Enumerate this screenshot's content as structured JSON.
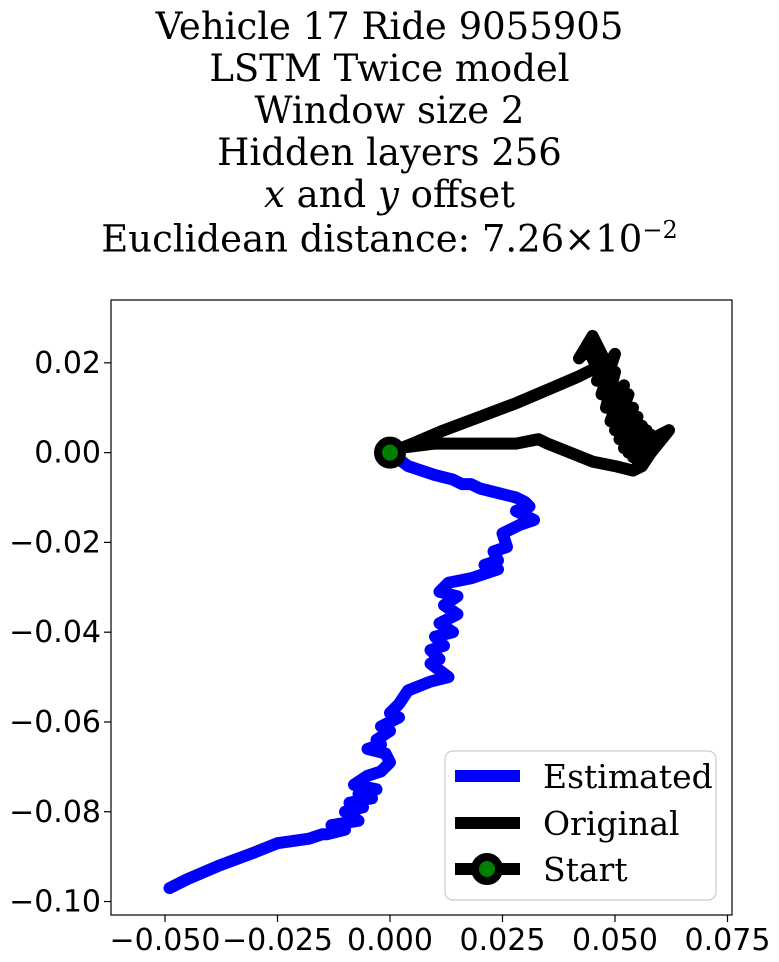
{
  "title_lines": [
    "Vehicle 17 Ride 9055905",
    "LSTM Twice model",
    "Window size 2",
    "Hidden layers 256",
    "x and y offset",
    "Euclidean distance: 7.26×10"
  ],
  "title_offset": {
    "var_x": "x",
    "and": " and ",
    "var_y": "y",
    "rest": " offset"
  },
  "title_distance": {
    "prefix": "Euclidean distance: 7.26",
    "times": "×",
    "base": "10",
    "exp": "−2"
  },
  "chart_data": {
    "type": "line",
    "xlim": [
      -0.062,
      0.076
    ],
    "ylim": [
      -0.103,
      0.034
    ],
    "grid": false,
    "legend_position": "lower-right",
    "x_ticks": [
      -0.05,
      -0.025,
      0.0,
      0.025,
      0.05,
      0.075
    ],
    "x_tick_labels": [
      "−0.050",
      "−0.025",
      "0.000",
      "0.025",
      "0.050",
      "0.075"
    ],
    "y_ticks": [
      0.02,
      0.0,
      -0.02,
      -0.04,
      -0.06,
      -0.08,
      -0.1
    ],
    "y_tick_labels": [
      "0.02",
      "0.00",
      "−0.02",
      "−0.04",
      "−0.06",
      "−0.08",
      "−0.10"
    ],
    "series": [
      {
        "name": "Estimated",
        "color": "#0000ff",
        "x": [
          0.0,
          0.004,
          0.01,
          0.014,
          0.016,
          0.018,
          0.02,
          0.024,
          0.028,
          0.03,
          0.031,
          0.028,
          0.032,
          0.029,
          0.025,
          0.026,
          0.023,
          0.024,
          0.021,
          0.024,
          0.018,
          0.013,
          0.011,
          0.015,
          0.012,
          0.015,
          0.011,
          0.014,
          0.01,
          0.012,
          0.009,
          0.011,
          0.009,
          0.013,
          0.009,
          0.004,
          0.002,
          0.0,
          0.002,
          -0.002,
          0.0,
          -0.003,
          -0.002,
          -0.005,
          -0.001,
          0.0,
          -0.002,
          -0.005,
          -0.008,
          -0.003,
          -0.007,
          -0.004,
          -0.009,
          -0.006,
          -0.01,
          -0.007,
          -0.013,
          -0.01,
          -0.014,
          -0.015,
          -0.018,
          -0.025,
          -0.03,
          -0.038,
          -0.045,
          -0.049
        ],
        "y": [
          0.0,
          -0.003,
          -0.005,
          -0.006,
          -0.007,
          -0.007,
          -0.008,
          -0.009,
          -0.01,
          -0.011,
          -0.012,
          -0.013,
          -0.015,
          -0.016,
          -0.018,
          -0.021,
          -0.022,
          -0.024,
          -0.025,
          -0.026,
          -0.028,
          -0.029,
          -0.031,
          -0.032,
          -0.034,
          -0.036,
          -0.038,
          -0.04,
          -0.041,
          -0.043,
          -0.044,
          -0.046,
          -0.047,
          -0.05,
          -0.051,
          -0.053,
          -0.056,
          -0.058,
          -0.059,
          -0.061,
          -0.062,
          -0.064,
          -0.065,
          -0.066,
          -0.067,
          -0.069,
          -0.071,
          -0.072,
          -0.074,
          -0.075,
          -0.076,
          -0.077,
          -0.078,
          -0.079,
          -0.08,
          -0.082,
          -0.083,
          -0.084,
          -0.085,
          -0.085,
          -0.086,
          -0.087,
          -0.089,
          -0.092,
          -0.095,
          -0.097
        ]
      },
      {
        "name": "Original",
        "color": "#000000",
        "x": [
          0.0,
          0.005,
          0.012,
          0.02,
          0.028,
          0.035,
          0.042,
          0.046,
          0.044,
          0.042,
          0.045,
          0.048,
          0.046,
          0.05,
          0.047,
          0.05,
          0.048,
          0.052,
          0.049,
          0.053,
          0.05,
          0.054,
          0.051,
          0.055,
          0.052,
          0.056,
          0.053,
          0.057,
          0.054,
          0.058,
          0.055,
          0.059,
          0.056,
          0.06,
          0.062,
          0.058,
          0.056,
          0.054,
          0.05,
          0.045,
          0.04,
          0.035,
          0.033,
          0.028,
          0.02,
          0.01,
          0.002,
          0.0
        ],
        "y": [
          0.0,
          0.002,
          0.005,
          0.008,
          0.011,
          0.014,
          0.017,
          0.019,
          0.023,
          0.021,
          0.026,
          0.02,
          0.016,
          0.022,
          0.013,
          0.018,
          0.01,
          0.015,
          0.007,
          0.013,
          0.005,
          0.01,
          0.003,
          0.008,
          0.001,
          0.006,
          0.0,
          0.005,
          -0.001,
          0.004,
          -0.002,
          0.003,
          -0.003,
          0.004,
          0.005,
          0.0,
          -0.003,
          -0.004,
          -0.003,
          -0.002,
          0.0,
          0.002,
          0.003,
          0.002,
          0.002,
          0.002,
          0.001,
          0.0
        ]
      }
    ],
    "start": {
      "name": "Start",
      "x": 0.0,
      "y": 0.0,
      "edge_color": "#000000",
      "face_color": "#008000"
    }
  }
}
